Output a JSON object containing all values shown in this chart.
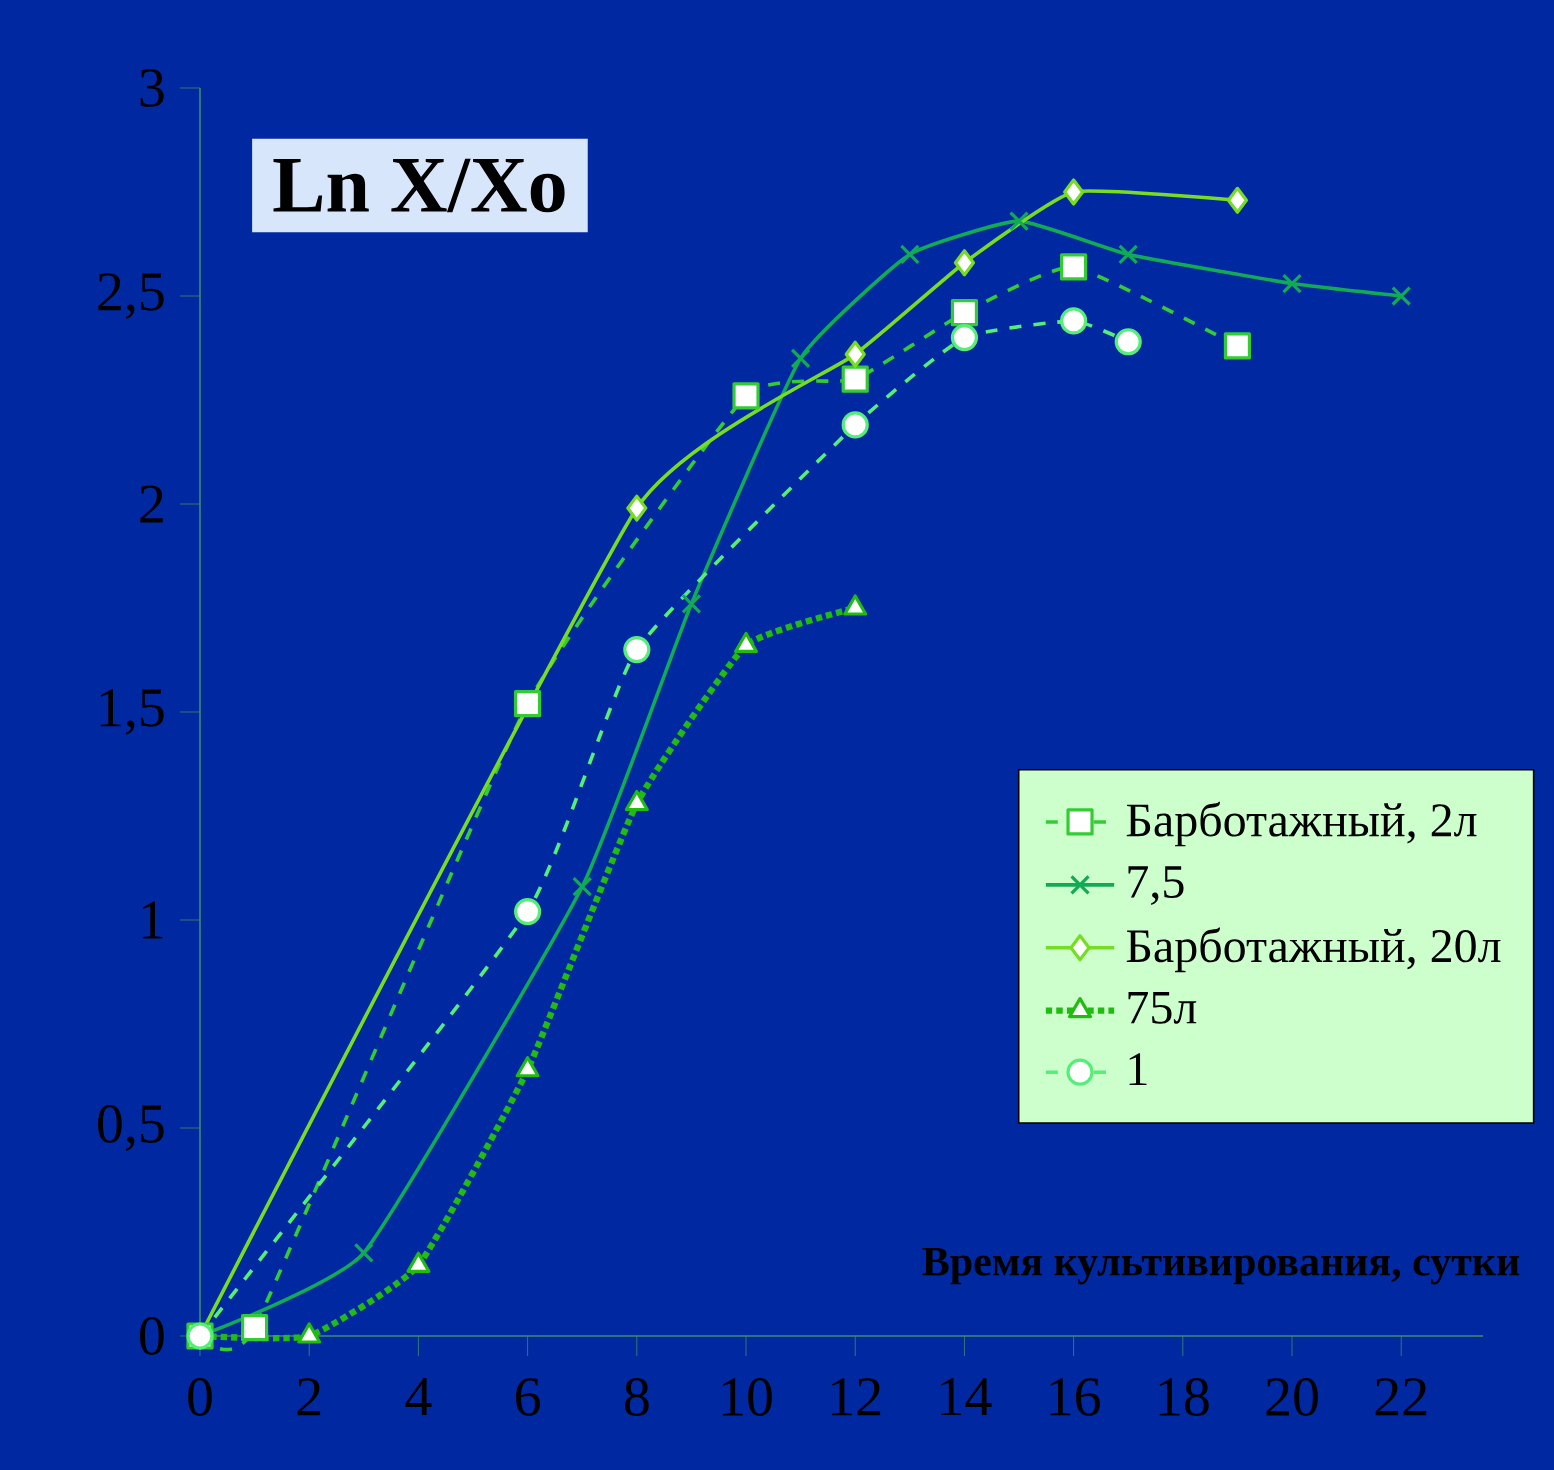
{
  "chart_data": {
    "type": "line",
    "ylabel": "Ln X/Xo",
    "xlabel": "Время культивирования, сутки",
    "xlim": [
      0,
      23.5
    ],
    "ylim": [
      0,
      3
    ],
    "xticks": [
      0,
      2,
      4,
      6,
      8,
      10,
      12,
      14,
      16,
      18,
      20,
      22
    ],
    "yticks": [
      0,
      {
        "value": 0.5,
        "label": "0,5"
      },
      1,
      {
        "value": 1.5,
        "label": "1,5"
      },
      2,
      {
        "value": 2.5,
        "label": "2,5"
      },
      3
    ],
    "grid": false,
    "legend": "bottom right",
    "series": [
      {
        "name": "Барботажный, 2л",
        "color": "#33cc33",
        "marker": "square",
        "line_style": "dashed",
        "x": [
          0,
          1,
          6,
          10,
          12,
          14,
          16,
          19
        ],
        "values": [
          0,
          0.02,
          1.52,
          2.26,
          2.3,
          2.46,
          2.57,
          2.38
        ]
      },
      {
        "name": "7,5",
        "color": "#11aa55",
        "marker": "cross",
        "line_style": "solid",
        "x": [
          0,
          3,
          7,
          9,
          11,
          13,
          15,
          17,
          20,
          22
        ],
        "values": [
          0,
          0.2,
          1.08,
          1.76,
          2.35,
          2.6,
          2.68,
          2.6,
          2.53,
          2.5
        ]
      },
      {
        "name": "Барботажный, 20л",
        "color": "#77dd22",
        "marker": "diamond",
        "line_style": "solid",
        "x": [
          0,
          8,
          12,
          14,
          16,
          19
        ],
        "values": [
          0,
          1.99,
          2.36,
          2.58,
          2.75,
          2.73
        ]
      },
      {
        "name": "75л",
        "color": "#22bb11",
        "marker": "triangle",
        "line_style": "dotted",
        "x": [
          0,
          2,
          4,
          6,
          8,
          10,
          12
        ],
        "values": [
          0,
          0,
          0.17,
          0.64,
          1.28,
          1.66,
          1.75
        ]
      },
      {
        "name": "1",
        "color": "#55ee77",
        "marker": "circle",
        "line_style": "dashed",
        "x": [
          0,
          6,
          8,
          12,
          14,
          16,
          17
        ],
        "values": [
          0,
          1.02,
          1.65,
          2.19,
          2.4,
          2.44,
          2.39
        ]
      }
    ]
  }
}
